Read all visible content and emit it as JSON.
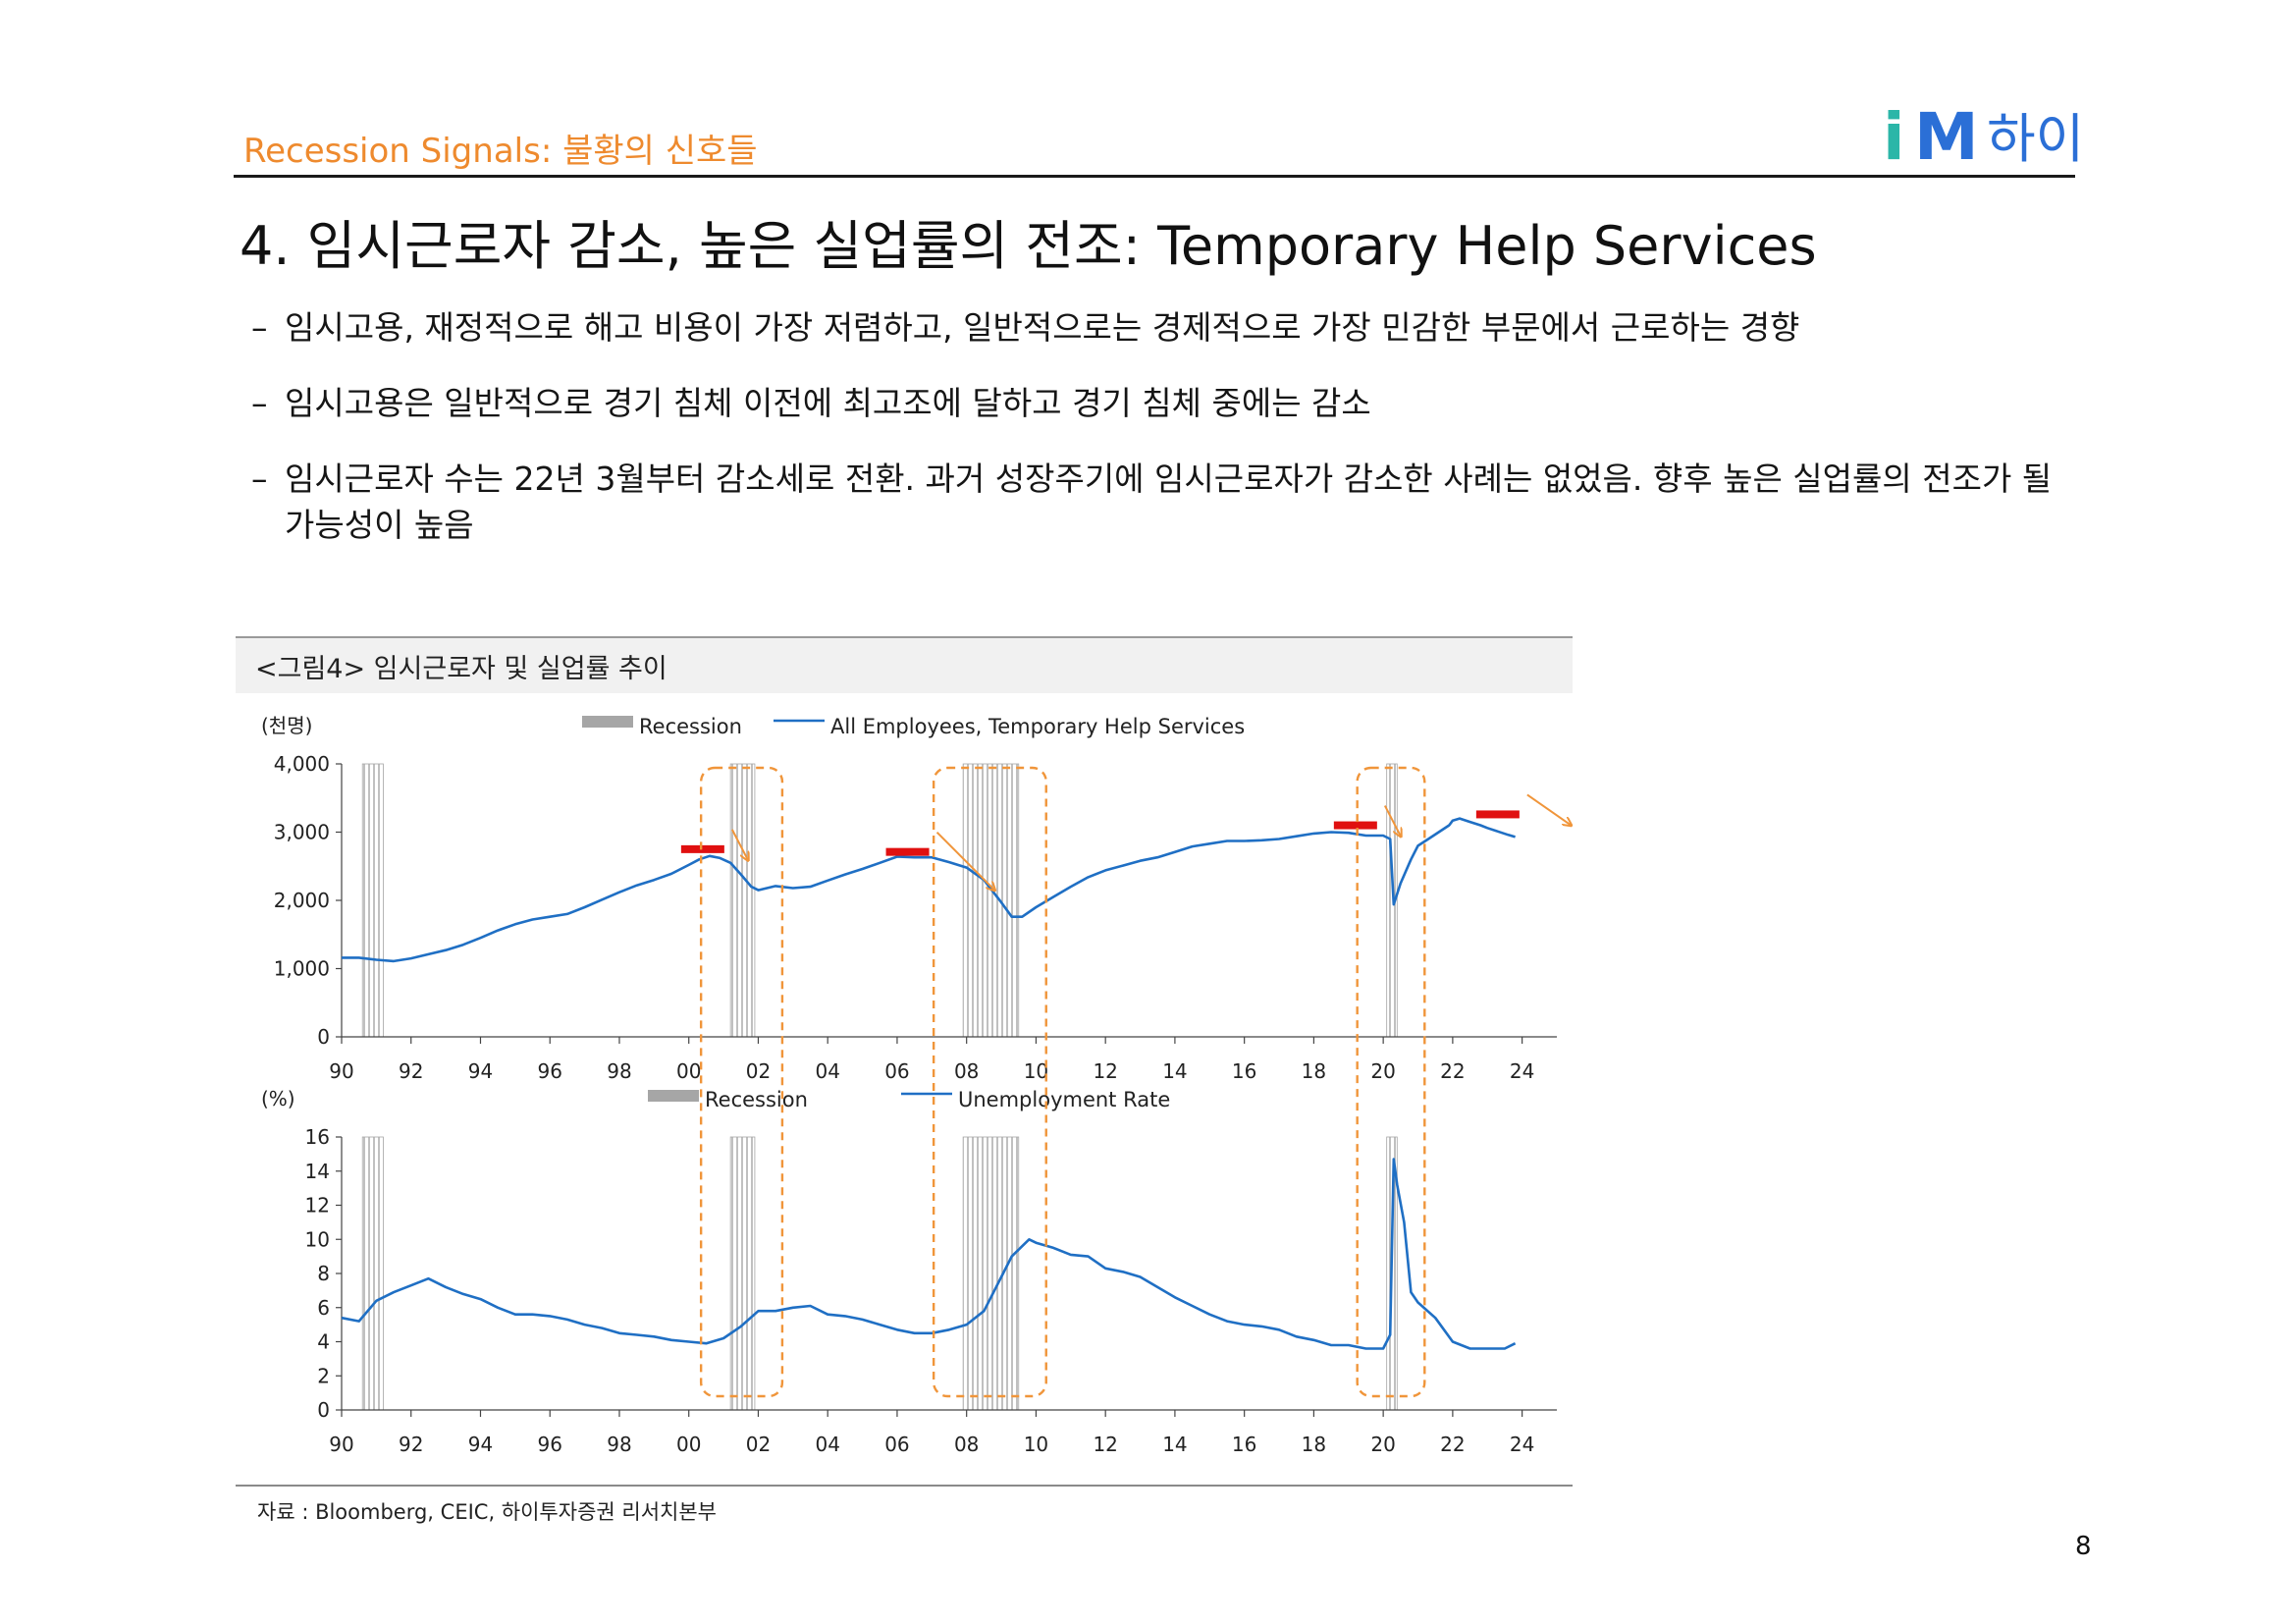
{
  "header": {
    "section": "Recession Signals: 불황의 신호들",
    "logo_text": "iM하이",
    "logo_colors": {
      "i": "#2bb6a8",
      "M": "#2b6fd6",
      "text": "#2b6fd6"
    }
  },
  "title": "4. 임시근로자 감소, 높은 실업률의 전조: Temporary Help Services",
  "bullets": [
    "임시고용, 재정적으로 해고 비용이 가장 저렴하고, 일반적으로는 경제적으로 가장 민감한 부문에서 근로하는 경향",
    "임시고용은 일반적으로 경기 침체 이전에 최고조에 달하고 경기 침체 중에는 감소",
    "임시근로자 수는 22년 3월부터 감소세로 전환. 과거 성장주기에 임시근로자가 감소한 사례는 없었음. 향후 높은 실업률의 전조가 될 가능성이 높음"
  ],
  "bullet_dash": "–",
  "figure": {
    "caption": "<그림4> 임시근로자 및 실업률 추이",
    "source": "자료 : Bloomberg, CEIC, 하이투자증권 리서치본부"
  },
  "page_number": "8",
  "colors": {
    "series": "#1f6fc4",
    "recession": "#a6a6a6",
    "highlight": "#f0953a",
    "peak": "#e01010",
    "axis": "#444444"
  },
  "chart_data": [
    {
      "type": "line",
      "title": "All Employees, Temporary Help Services",
      "ylabel": "(천명)",
      "ylim": [
        0,
        4000
      ],
      "yticks": [
        0,
        1000,
        2000,
        3000,
        4000
      ],
      "ytick_labels": [
        "0",
        "1,000",
        "2,000",
        "3,000",
        "4,000"
      ],
      "xlim": [
        1990,
        2025
      ],
      "xticks": [
        1990,
        1992,
        1994,
        1996,
        1998,
        2000,
        2002,
        2004,
        2006,
        2008,
        2010,
        2012,
        2014,
        2016,
        2018,
        2020,
        2022,
        2024
      ],
      "xtick_labels": [
        "90",
        "92",
        "94",
        "96",
        "98",
        "00",
        "02",
        "04",
        "06",
        "08",
        "10",
        "12",
        "14",
        "16",
        "18",
        "20",
        "22",
        "24"
      ],
      "legend": [
        "Recession",
        "All Employees, Temporary Help Services"
      ],
      "recessions": [
        [
          1990.6,
          1991.2
        ],
        [
          2001.2,
          2001.9
        ],
        [
          2007.9,
          2009.5
        ],
        [
          2020.1,
          2020.4
        ]
      ],
      "x": [
        1990,
        1990.5,
        1991,
        1991.5,
        1992,
        1992.5,
        1993,
        1993.5,
        1994,
        1994.5,
        1995,
        1995.5,
        1996,
        1996.5,
        1997,
        1997.5,
        1998,
        1998.5,
        1999,
        1999.5,
        2000,
        2000.3,
        2000.6,
        2000.9,
        2001.2,
        2001.5,
        2001.8,
        2002,
        2002.5,
        2003,
        2003.5,
        2004,
        2004.5,
        2005,
        2005.5,
        2006,
        2006.5,
        2007,
        2007.5,
        2008,
        2008.5,
        2009,
        2009.3,
        2009.6,
        2010,
        2010.5,
        2011,
        2011.5,
        2012,
        2012.5,
        2013,
        2013.5,
        2014,
        2014.5,
        2015,
        2015.5,
        2016,
        2016.5,
        2017,
        2017.5,
        2018,
        2018.5,
        2019,
        2019.5,
        2020,
        2020.2,
        2020.3,
        2020.5,
        2020.8,
        2021,
        2021.3,
        2021.6,
        2021.9,
        2022,
        2022.2,
        2022.5,
        2022.8,
        2023,
        2023.3,
        2023.6,
        2023.8
      ],
      "values": [
        1160,
        1160,
        1130,
        1110,
        1150,
        1210,
        1270,
        1350,
        1450,
        1560,
        1650,
        1720,
        1760,
        1800,
        1900,
        2010,
        2120,
        2220,
        2300,
        2390,
        2520,
        2600,
        2650,
        2620,
        2550,
        2380,
        2200,
        2150,
        2210,
        2180,
        2200,
        2290,
        2380,
        2460,
        2550,
        2640,
        2630,
        2630,
        2560,
        2480,
        2300,
        1970,
        1760,
        1760,
        1900,
        2050,
        2200,
        2340,
        2440,
        2510,
        2580,
        2630,
        2710,
        2790,
        2830,
        2870,
        2870,
        2880,
        2900,
        2940,
        2980,
        3000,
        2990,
        2950,
        2950,
        2900,
        1940,
        2250,
        2600,
        2800,
        2900,
        3000,
        3100,
        3170,
        3200,
        3150,
        3100,
        3060,
        3010,
        2960,
        2930
      ],
      "peak_markers": [
        [
          2000.4,
          2750
        ],
        [
          2006.3,
          2710
        ],
        [
          2019.2,
          3100
        ],
        [
          2023.3,
          3260
        ]
      ]
    },
    {
      "type": "line",
      "title": "Unemployment Rate",
      "ylabel": "(%)",
      "ylim": [
        0,
        16
      ],
      "yticks": [
        0,
        2,
        4,
        6,
        8,
        10,
        12,
        14,
        16
      ],
      "ytick_labels": [
        "0",
        "2",
        "4",
        "6",
        "8",
        "10",
        "12",
        "14",
        "16"
      ],
      "xlim": [
        1990,
        2025
      ],
      "xticks": [
        1990,
        1992,
        1994,
        1996,
        1998,
        2000,
        2002,
        2004,
        2006,
        2008,
        2010,
        2012,
        2014,
        2016,
        2018,
        2020,
        2022,
        2024
      ],
      "xtick_labels": [
        "90",
        "92",
        "94",
        "96",
        "98",
        "00",
        "02",
        "04",
        "06",
        "08",
        "10",
        "12",
        "14",
        "16",
        "18",
        "20",
        "22",
        "24"
      ],
      "legend": [
        "Recession",
        "Unemployment Rate"
      ],
      "recessions": [
        [
          1990.6,
          1991.2
        ],
        [
          2001.2,
          2001.9
        ],
        [
          2007.9,
          2009.5
        ],
        [
          2020.1,
          2020.4
        ]
      ],
      "x": [
        1990,
        1990.5,
        1991,
        1991.5,
        1992,
        1992.5,
        1993,
        1993.5,
        1994,
        1994.5,
        1995,
        1995.5,
        1996,
        1996.5,
        1997,
        1997.5,
        1998,
        1998.5,
        1999,
        1999.5,
        2000,
        2000.5,
        2001,
        2001.5,
        2002,
        2002.5,
        2003,
        2003.5,
        2004,
        2004.5,
        2005,
        2005.5,
        2006,
        2006.5,
        2007,
        2007.5,
        2008,
        2008.5,
        2009,
        2009.3,
        2009.6,
        2009.8,
        2010,
        2010.5,
        2011,
        2011.5,
        2012,
        2012.5,
        2013,
        2013.5,
        2014,
        2014.5,
        2015,
        2015.5,
        2016,
        2016.5,
        2017,
        2017.5,
        2018,
        2018.5,
        2019,
        2019.5,
        2020,
        2020.2,
        2020.3,
        2020.4,
        2020.6,
        2020.8,
        2021,
        2021.5,
        2022,
        2022.5,
        2023,
        2023.5,
        2023.8
      ],
      "values": [
        5.4,
        5.2,
        6.4,
        6.9,
        7.3,
        7.7,
        7.2,
        6.8,
        6.5,
        6.0,
        5.6,
        5.6,
        5.5,
        5.3,
        5.0,
        4.8,
        4.5,
        4.4,
        4.3,
        4.1,
        4.0,
        3.9,
        4.2,
        4.9,
        5.8,
        5.8,
        6.0,
        6.1,
        5.6,
        5.5,
        5.3,
        5.0,
        4.7,
        4.5,
        4.5,
        4.7,
        5.0,
        5.8,
        7.8,
        9.0,
        9.6,
        10.0,
        9.8,
        9.5,
        9.1,
        9.0,
        8.3,
        8.1,
        7.8,
        7.2,
        6.6,
        6.1,
        5.6,
        5.2,
        5.0,
        4.9,
        4.7,
        4.3,
        4.1,
        3.8,
        3.8,
        3.6,
        3.6,
        4.4,
        14.7,
        13.2,
        11.0,
        6.9,
        6.3,
        5.4,
        4.0,
        3.6,
        3.6,
        3.6,
        3.9
      ]
    }
  ]
}
